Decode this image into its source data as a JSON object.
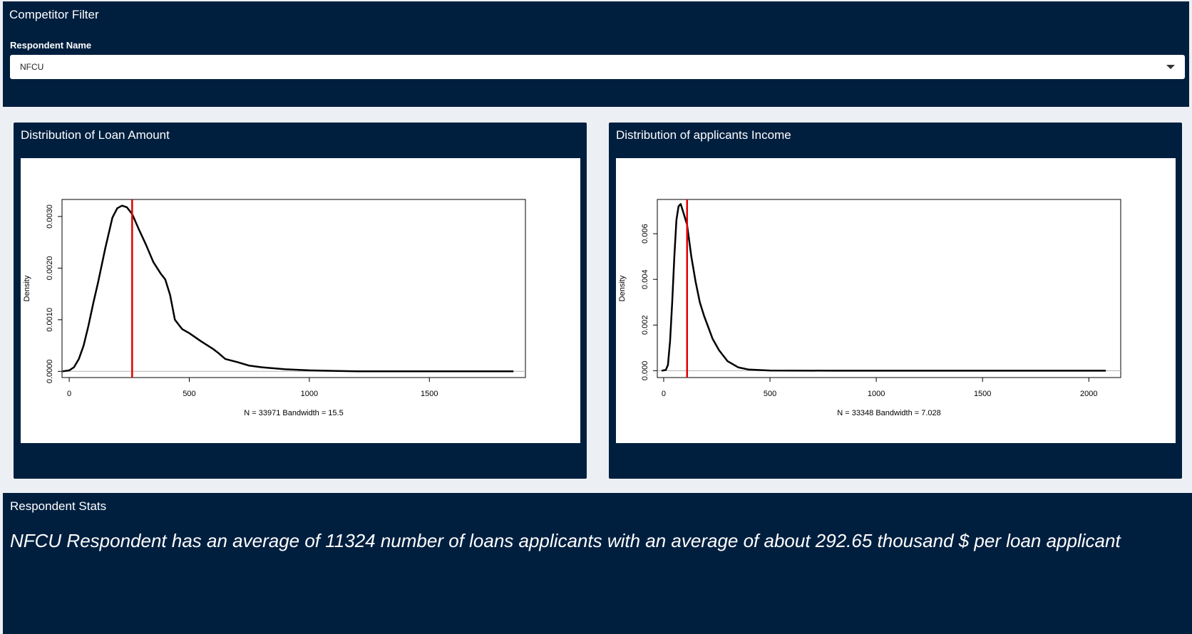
{
  "filter": {
    "title": "Competitor Filter",
    "field_label": "Respondent Name",
    "selected": "NFCU"
  },
  "charts": {
    "loan": {
      "title": "Distribution of Loan Amount"
    },
    "income": {
      "title": "Distribution of applicants Income"
    }
  },
  "stats": {
    "title": "Respondent Stats",
    "text": "NFCU Respondent has an average of 11324 number of loans applicants with an average of about 292.65 thousand $ per loan applicant"
  },
  "colors": {
    "panel_bg": "#001f3f",
    "page_bg": "#eceff4",
    "density_line": "#000000",
    "mean_line": "#e00000"
  },
  "chart_data": [
    {
      "type": "line",
      "title": "",
      "xlabel": "N = 33971   Bandwidth = 15.5",
      "ylabel": "Density",
      "xlim": [
        -30,
        1900
      ],
      "ylim": [
        -0.00012,
        0.00333
      ],
      "xticks": [
        0,
        500,
        1000,
        1500
      ],
      "yticks": [
        0.0,
        0.001,
        0.002,
        0.003
      ],
      "ytick_labels": [
        "0.0000",
        "0.0010",
        "0.0020",
        "0.0030"
      ],
      "grid": false,
      "vline": {
        "x": 262,
        "color": "#e00000"
      },
      "series": [
        {
          "x": [
            -28,
            0,
            20,
            40,
            60,
            80,
            100,
            120,
            150,
            180,
            200,
            220,
            240,
            262,
            290,
            320,
            350,
            380,
            400,
            420,
            440,
            470,
            500,
            550,
            600,
            620,
            650,
            700,
            750,
            800,
            900,
            1000,
            1100,
            1200,
            1500,
            1850
          ],
          "y": [
            0.0,
            2e-05,
            8e-05,
            0.00024,
            0.0005,
            0.00088,
            0.00132,
            0.00172,
            0.00238,
            0.00298,
            0.00316,
            0.00321,
            0.00318,
            0.00305,
            0.00275,
            0.00245,
            0.00212,
            0.0019,
            0.00178,
            0.00148,
            0.001,
            0.00082,
            0.00074,
            0.00058,
            0.00043,
            0.00036,
            0.00024,
            0.00018,
            0.00011,
            8e-05,
            4e-05,
            2e-05,
            1e-05,
            0.0,
            0.0,
            0.0
          ]
        }
      ]
    },
    {
      "type": "line",
      "title": "",
      "xlabel": "N = 33348   Bandwidth = 7.028",
      "ylabel": "Density",
      "xlim": [
        -30,
        2150
      ],
      "ylim": [
        -0.0003,
        0.0075
      ],
      "xticks": [
        0,
        500,
        1000,
        1500,
        2000
      ],
      "yticks": [
        0.0,
        0.002,
        0.004,
        0.006
      ],
      "ytick_labels": [
        "0.000",
        "0.002",
        "0.004",
        "0.006"
      ],
      "grid": false,
      "vline": {
        "x": 110,
        "color": "#e00000"
      },
      "series": [
        {
          "x": [
            -10,
            10,
            20,
            30,
            40,
            50,
            60,
            70,
            80,
            90,
            110,
            130,
            150,
            170,
            190,
            210,
            230,
            260,
            300,
            350,
            400,
            500,
            800,
            1200,
            2080
          ],
          "y": [
            0.0,
            3e-05,
            0.00025,
            0.0013,
            0.003,
            0.005,
            0.0066,
            0.0072,
            0.0073,
            0.007,
            0.0064,
            0.005,
            0.0039,
            0.003,
            0.0024,
            0.0019,
            0.0014,
            0.0009,
            0.00042,
            0.00015,
            5e-05,
            1e-05,
            0.0,
            0.0,
            0.0
          ]
        }
      ]
    }
  ]
}
